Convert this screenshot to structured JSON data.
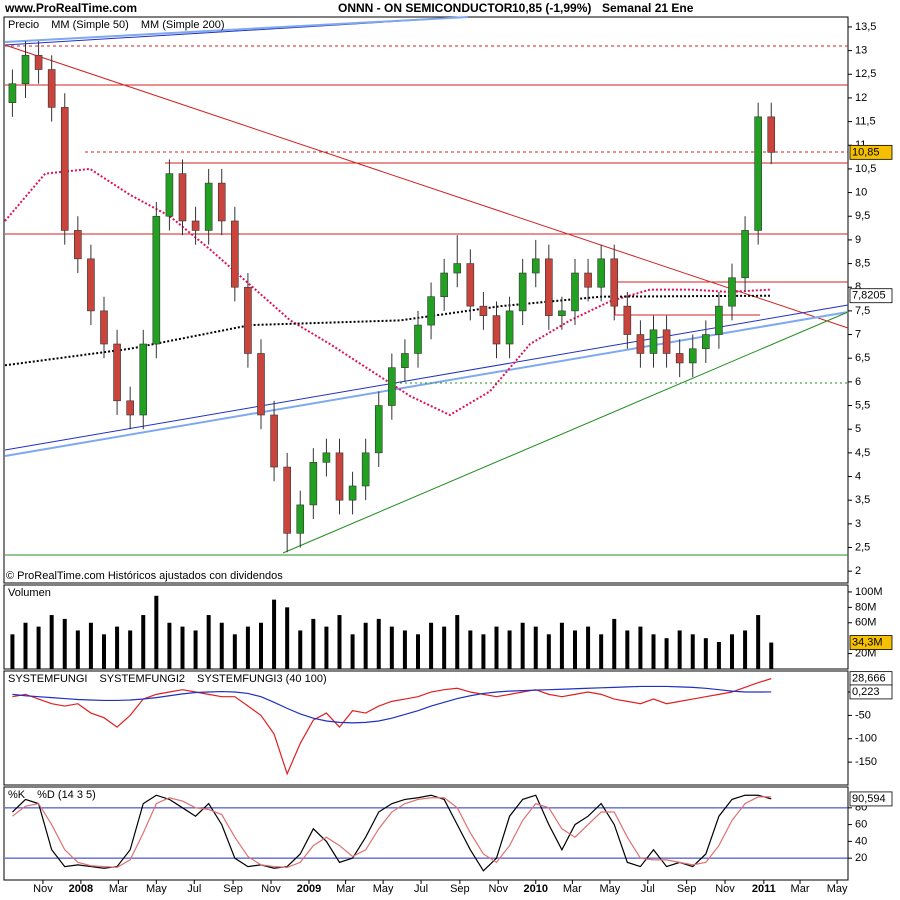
{
  "header": {
    "site": "www.ProRealTime.com",
    "title": "ONNN - ON SEMICONDUCTOR",
    "quote": "10,85 (-1,99%)",
    "period": "Semanal  21 Ene"
  },
  "chart_data": [
    {
      "type": "candlestick",
      "label": "Precio",
      "footnote": "© ProRealTime.com Históricos ajustados con dividendos",
      "x": [
        -7,
        -4,
        -1,
        2,
        5,
        8,
        11,
        14,
        17,
        20,
        23,
        26,
        29,
        32,
        35,
        38,
        41,
        44,
        47,
        50,
        53,
        56,
        59,
        62,
        65,
        68,
        71,
        74,
        77,
        80,
        83,
        86,
        89,
        92,
        95,
        98,
        101,
        104,
        107,
        110,
        113,
        116,
        119,
        122,
        125,
        128,
        131,
        134,
        137,
        140,
        143,
        146,
        149,
        152,
        155,
        158,
        161,
        164,
        167
      ],
      "open": [
        11.9,
        12.3,
        12.9,
        12.6,
        11.8,
        9.2,
        8.6,
        7.5,
        6.8,
        5.6,
        5.3,
        6.8,
        9.5,
        10.4,
        9.4,
        9.2,
        10.2,
        9.4,
        8.0,
        6.6,
        5.3,
        4.2,
        2.8,
        3.4,
        4.3,
        4.5,
        3.5,
        3.8,
        4.5,
        5.5,
        6.3,
        6.6,
        7.2,
        7.8,
        8.3,
        8.5,
        7.6,
        7.4,
        6.8,
        7.5,
        8.3,
        8.6,
        7.4,
        7.5,
        8.3,
        8.0,
        8.6,
        7.6,
        7.0,
        6.6,
        7.1,
        6.6,
        6.4,
        6.7,
        7.0,
        7.6,
        8.2,
        9.2,
        11.6
      ],
      "high": [
        12.6,
        13.2,
        13.2,
        12.9,
        12.1,
        9.5,
        8.9,
        7.8,
        7.1,
        5.9,
        7.1,
        9.8,
        10.7,
        10.7,
        9.7,
        10.5,
        10.5,
        9.7,
        8.3,
        6.9,
        5.6,
        4.5,
        3.7,
        4.6,
        4.8,
        4.8,
        4.1,
        4.8,
        5.8,
        6.6,
        6.9,
        7.5,
        8.1,
        8.6,
        9.1,
        8.8,
        7.9,
        7.7,
        7.8,
        8.6,
        9.0,
        8.9,
        7.8,
        8.6,
        8.6,
        8.9,
        8.9,
        7.9,
        7.3,
        7.4,
        7.4,
        6.9,
        7.0,
        7.3,
        7.9,
        8.5,
        9.5,
        11.9,
        11.9
      ],
      "low": [
        11.6,
        12.0,
        12.3,
        11.5,
        8.9,
        8.3,
        7.2,
        6.5,
        5.3,
        5.0,
        5.0,
        6.5,
        9.2,
        9.1,
        8.9,
        8.9,
        9.1,
        7.7,
        6.3,
        5.0,
        3.9,
        2.4,
        2.5,
        3.1,
        4.0,
        3.2,
        3.2,
        3.5,
        4.2,
        5.2,
        6.0,
        6.3,
        6.9,
        7.5,
        8.0,
        7.3,
        7.1,
        6.5,
        6.5,
        7.2,
        8.0,
        7.1,
        7.1,
        7.2,
        7.7,
        7.7,
        7.3,
        6.7,
        6.3,
        6.3,
        6.3,
        6.1,
        6.1,
        6.4,
        6.7,
        7.3,
        7.9,
        8.9,
        10.6
      ],
      "close": [
        12.3,
        12.9,
        12.6,
        11.8,
        9.2,
        8.6,
        7.5,
        6.8,
        5.6,
        5.3,
        6.8,
        9.5,
        10.4,
        9.4,
        9.2,
        10.2,
        9.4,
        8.0,
        6.6,
        5.3,
        4.2,
        2.8,
        3.4,
        4.3,
        4.5,
        3.5,
        3.8,
        4.5,
        5.5,
        6.3,
        6.6,
        7.2,
        7.8,
        8.3,
        8.5,
        7.6,
        7.4,
        6.8,
        7.5,
        8.3,
        8.6,
        7.4,
        7.5,
        8.3,
        8.0,
        8.6,
        7.6,
        7.0,
        6.6,
        7.1,
        6.6,
        6.4,
        6.7,
        7.0,
        7.6,
        8.2,
        9.2,
        11.6,
        10.85
      ],
      "colors": {
        "up": "#22a022",
        "down": "#c8443c"
      },
      "ma_series": [
        {
          "name": "MM (Simple 50)",
          "color": "#e0105a",
          "x": [
            -8.7,
            0.5,
            10.8,
            20,
            29.1,
            38.3,
            47.5,
            56.7,
            65.8,
            75,
            84.2,
            93.3,
            102.5,
            111.7,
            120.9,
            130,
            139.2,
            148.4,
            157.6,
            166.7
          ],
          "values": [
            9.4,
            10.4,
            10.5,
            9.95,
            9.5,
            8.8,
            8.05,
            7.3,
            6.8,
            6.25,
            5.7,
            5.3,
            5.8,
            6.8,
            7.3,
            7.7,
            7.95,
            7.95,
            7.9,
            7.95
          ]
        },
        {
          "name": "MM (Simple 200)",
          "color": "#000000",
          "x": [
            -8.7,
            20,
            47.5,
            82,
            105,
            128,
            166.7
          ],
          "values": [
            6.35,
            6.7,
            7.2,
            7.3,
            7.6,
            7.8,
            7.82
          ]
        }
      ],
      "ylim": [
        1.75,
        13.71
      ],
      "yticks": [
        2,
        {
          "value": 2.5,
          "label": "2,5"
        },
        3,
        {
          "value": 3.5,
          "label": "3,5"
        },
        4,
        {
          "value": 4.5,
          "label": "4,5"
        },
        5,
        {
          "value": 5.5,
          "label": "5,5"
        },
        6,
        {
          "value": 6.5,
          "label": "6,5"
        },
        7,
        {
          "value": 7.5,
          "label": "7,5"
        },
        8,
        {
          "value": 8.5,
          "label": "8,5"
        },
        9,
        {
          "value": 9.5,
          "label": "9,5"
        },
        10,
        {
          "value": 10.5,
          "label": "10,5"
        },
        11,
        {
          "value": 11.5,
          "label": "11,5"
        },
        12,
        {
          "value": 12.5,
          "label": "12,5"
        },
        13,
        {
          "value": 13.5,
          "label": "13,5"
        }
      ],
      "markers": [
        {
          "value": 10.85,
          "label": "10,85",
          "color": "#f5c000"
        },
        {
          "value": 7.8205,
          "label": "7,8205",
          "color": "#ffffff"
        }
      ],
      "xlim": [
        -8.7,
        184.6
      ],
      "xticks": [
        {
          "value": 0,
          "label": "Nov"
        },
        {
          "value": 8.7,
          "label": "2008"
        },
        {
          "value": 17.3,
          "label": "Mar"
        },
        {
          "value": 26,
          "label": "May"
        },
        {
          "value": 34.7,
          "label": "Jul"
        },
        {
          "value": 43.6,
          "label": "Sep"
        },
        {
          "value": 52.3,
          "label": "Nov"
        },
        {
          "value": 61,
          "label": "2009"
        },
        {
          "value": 69.4,
          "label": "Mar"
        },
        {
          "value": 78,
          "label": "May"
        },
        {
          "value": 86.7,
          "label": "Jul"
        },
        {
          "value": 95.6,
          "label": "Sep"
        },
        {
          "value": 104.4,
          "label": "Nov"
        },
        {
          "value": 113,
          "label": "2010"
        },
        {
          "value": 121.4,
          "label": "Mar"
        },
        {
          "value": 130,
          "label": "May"
        },
        {
          "value": 138.7,
          "label": "Jul"
        },
        {
          "value": 147.6,
          "label": "Sep"
        },
        {
          "value": 156.4,
          "label": "Nov"
        },
        {
          "value": 165.3,
          "label": "2011"
        },
        {
          "value": 173.6,
          "label": "Mar"
        },
        {
          "value": 182.1,
          "label": "May"
        }
      ]
    },
    {
      "type": "bar",
      "label": "Volumen",
      "color": "#000000",
      "values": [
        45,
        60,
        55,
        70,
        65,
        50,
        60,
        45,
        55,
        50,
        70,
        95,
        60,
        55,
        50,
        70,
        60,
        45,
        55,
        60,
        90,
        80,
        50,
        65,
        55,
        70,
        45,
        60,
        65,
        55,
        50,
        45,
        60,
        55,
        70,
        50,
        45,
        55,
        50,
        60,
        55,
        45,
        60,
        50,
        55,
        45,
        65,
        50,
        55,
        45,
        40,
        50,
        45,
        40,
        35,
        45,
        50,
        70,
        34.3
      ],
      "ylim": [
        0,
        109
      ],
      "yticks": [
        {
          "value": 20,
          "label": "20M"
        },
        {
          "value": 60,
          "label": "60M"
        },
        {
          "value": 80,
          "label": "80M"
        },
        {
          "value": 100,
          "label": "100M"
        }
      ],
      "markers": [
        {
          "value": 34.3,
          "label": "34,3M",
          "color": "#f5c000"
        }
      ]
    },
    {
      "type": "line",
      "label": "SYSTEMFUNGI",
      "series": [
        {
          "name": "SYSTEMFUNGI2",
          "color": "#e02020",
          "values": [
            -10,
            -5,
            -15,
            -25,
            -30,
            -25,
            -45,
            -55,
            -75,
            -50,
            -15,
            -5,
            0,
            5,
            0,
            -5,
            -10,
            -10,
            -30,
            -50,
            -90,
            -175,
            -110,
            -60,
            -45,
            -75,
            -40,
            -45,
            -30,
            -20,
            -15,
            -10,
            0,
            5,
            8,
            0,
            -5,
            -10,
            -5,
            0,
            5,
            -5,
            -10,
            -5,
            0,
            -5,
            -15,
            -20,
            -25,
            -15,
            -25,
            -20,
            -15,
            -10,
            -5,
            0,
            10,
            20,
            28.666
          ]
        },
        {
          "name": "SYSTEMFUNGI3 (40 100)",
          "color": "#2030c0",
          "values": [
            -5,
            -8,
            -10,
            -12,
            -14,
            -16,
            -17,
            -18,
            -18,
            -17,
            -15,
            -12,
            -8,
            -4,
            -1,
            0,
            1,
            0,
            -3,
            -10,
            -22,
            -35,
            -47,
            -56,
            -62,
            -65,
            -66,
            -65,
            -62,
            -56,
            -48,
            -40,
            -30,
            -22,
            -14,
            -8,
            -3,
            0,
            2,
            3,
            4,
            5,
            6,
            7,
            8,
            9,
            10,
            11,
            12,
            12,
            12,
            11,
            10,
            8,
            5,
            2,
            0,
            0,
            0.223
          ]
        }
      ],
      "ylim": [
        -199,
        45
      ],
      "yticks": [
        0,
        -50,
        -100,
        -150
      ],
      "markers": [
        {
          "value": 28.666,
          "label": "28,666",
          "color": "#ffffff"
        },
        {
          "value": 0.223,
          "label": "0,223",
          "color": "#ffffff"
        }
      ]
    },
    {
      "type": "line",
      "series": [
        {
          "name": "%K",
          "color": "#000000",
          "values": [
            75,
            90,
            85,
            30,
            10,
            12,
            10,
            8,
            10,
            30,
            85,
            95,
            90,
            80,
            70,
            85,
            60,
            20,
            10,
            12,
            8,
            10,
            25,
            55,
            40,
            15,
            20,
            45,
            75,
            85,
            90,
            92,
            95,
            90,
            60,
            30,
            5,
            20,
            70,
            90,
            95,
            60,
            30,
            60,
            70,
            85,
            60,
            15,
            10,
            30,
            10,
            15,
            10,
            25,
            70,
            90,
            95,
            95,
            90.594
          ]
        },
        {
          "name": "%D (14 3 5)",
          "color": "#e07070",
          "values": [
            70,
            82,
            85,
            60,
            30,
            15,
            11,
            10,
            9,
            18,
            50,
            85,
            92,
            88,
            80,
            78,
            72,
            45,
            22,
            12,
            10,
            9,
            15,
            35,
            45,
            35,
            22,
            30,
            55,
            75,
            85,
            90,
            92,
            92,
            80,
            50,
            25,
            15,
            35,
            65,
            85,
            80,
            55,
            45,
            60,
            75,
            75,
            45,
            20,
            18,
            18,
            15,
            12,
            15,
            35,
            65,
            85,
            93,
            93
          ]
        }
      ],
      "ylim": [
        -6,
        104.8
      ],
      "yticks": [
        20,
        40,
        60,
        80
      ],
      "ref_lines": [
        80,
        20
      ],
      "markers": [
        {
          "value": 90.594,
          "label": "90,594",
          "color": "#ffffff"
        }
      ]
    }
  ]
}
